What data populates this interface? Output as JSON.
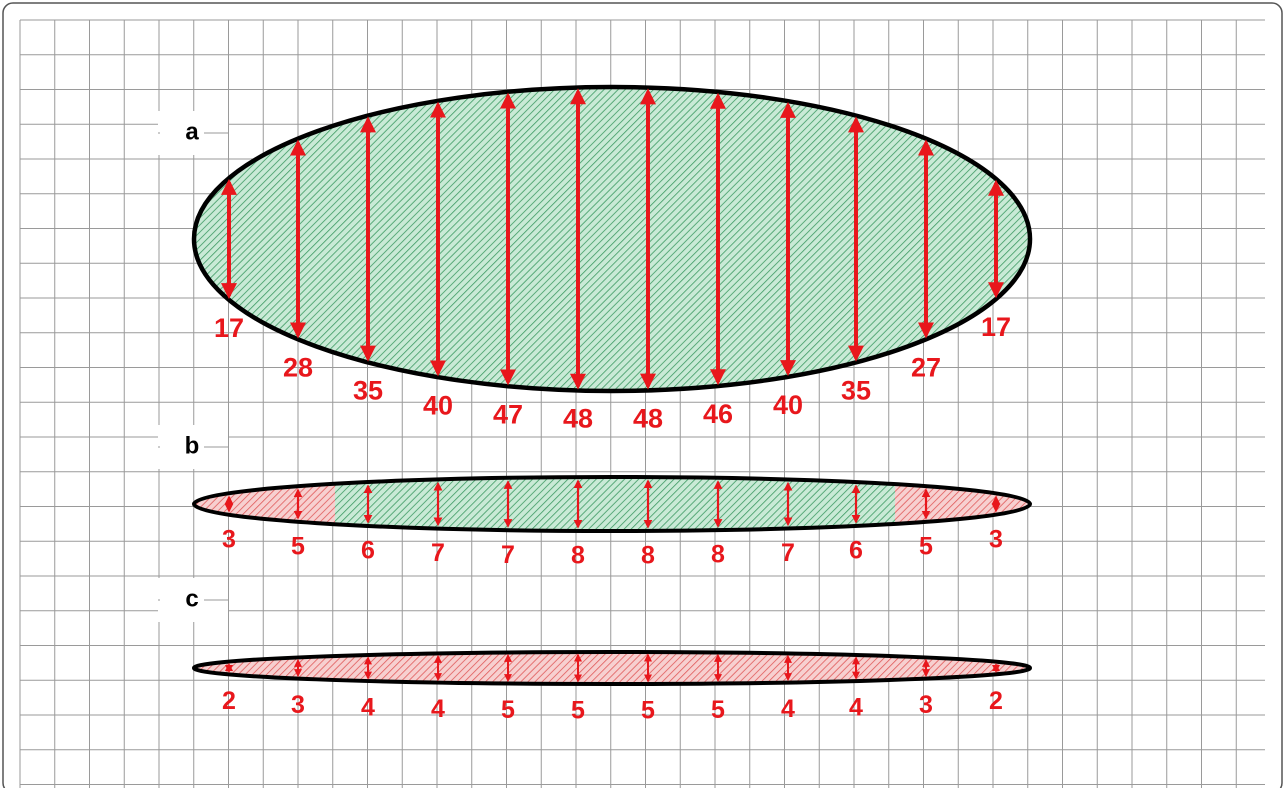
{
  "panels": [
    {
      "label": "a",
      "measurements": [
        17,
        28,
        35,
        40,
        47,
        48,
        48,
        46,
        40,
        35,
        27,
        17
      ]
    },
    {
      "label": "b",
      "measurements": [
        3,
        5,
        6,
        7,
        7,
        8,
        8,
        8,
        7,
        6,
        5,
        3
      ]
    },
    {
      "label": "c",
      "measurements": [
        2,
        3,
        4,
        4,
        5,
        5,
        5,
        5,
        4,
        4,
        3,
        2
      ]
    }
  ]
}
